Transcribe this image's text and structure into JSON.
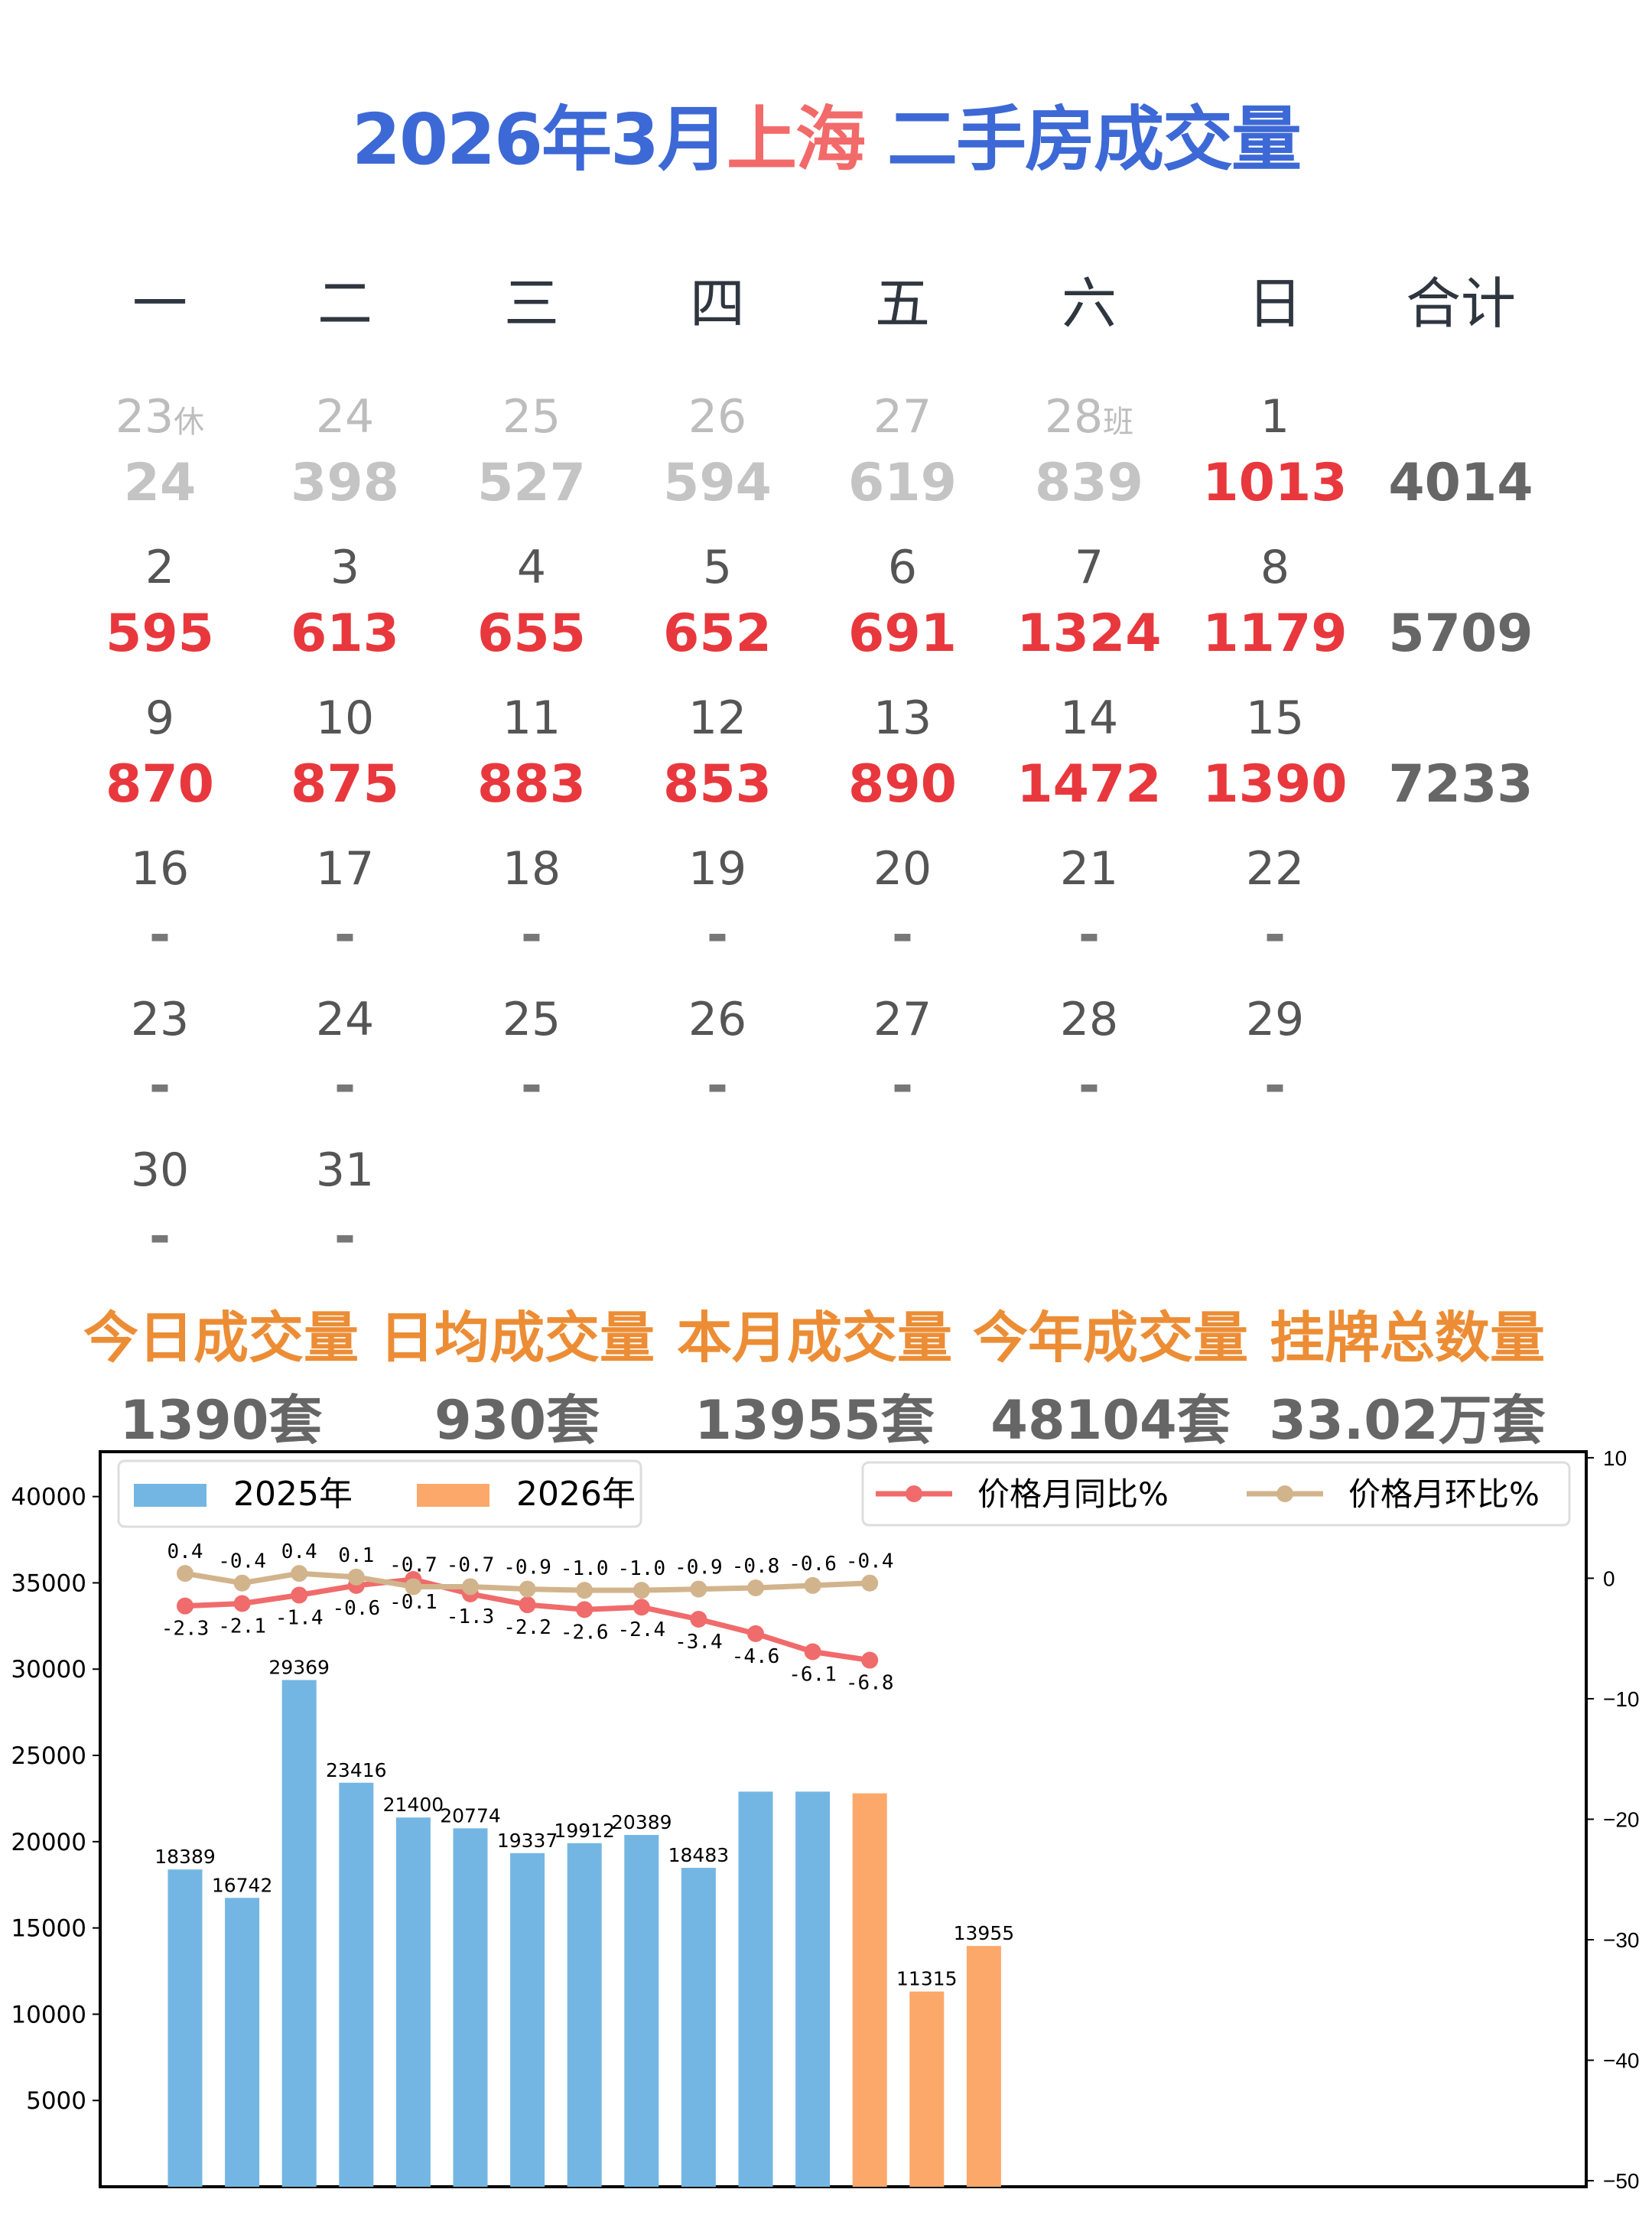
{
  "title": {
    "prefix": "2026年3月",
    "city": "上海",
    "suffix": " 二手房成交量",
    "color": "#3d69d6",
    "city_color": "#f26a6a"
  },
  "calendar": {
    "weekdays": [
      "一",
      "二",
      "三",
      "四",
      "五",
      "六",
      "日",
      "合计"
    ],
    "weeks": [
      {
        "days": [
          {
            "date": "23",
            "note": "休",
            "value": "24",
            "state": "prev"
          },
          {
            "date": "24",
            "value": "398",
            "state": "prev"
          },
          {
            "date": "25",
            "value": "527",
            "state": "prev"
          },
          {
            "date": "26",
            "value": "594",
            "state": "prev"
          },
          {
            "date": "27",
            "value": "619",
            "state": "prev"
          },
          {
            "date": "28",
            "note": "班",
            "value": "839",
            "state": "prev"
          },
          {
            "date": "1",
            "value": "1013",
            "state": "current"
          }
        ],
        "total": "4014"
      },
      {
        "days": [
          {
            "date": "2",
            "value": "595",
            "state": "current"
          },
          {
            "date": "3",
            "value": "613",
            "state": "current"
          },
          {
            "date": "4",
            "value": "655",
            "state": "current"
          },
          {
            "date": "5",
            "value": "652",
            "state": "current"
          },
          {
            "date": "6",
            "value": "691",
            "state": "current"
          },
          {
            "date": "7",
            "value": "1324",
            "state": "current"
          },
          {
            "date": "8",
            "value": "1179",
            "state": "current"
          }
        ],
        "total": "5709"
      },
      {
        "days": [
          {
            "date": "9",
            "value": "870",
            "state": "current"
          },
          {
            "date": "10",
            "value": "875",
            "state": "current"
          },
          {
            "date": "11",
            "value": "883",
            "state": "current"
          },
          {
            "date": "12",
            "value": "853",
            "state": "current"
          },
          {
            "date": "13",
            "value": "890",
            "state": "current"
          },
          {
            "date": "14",
            "value": "1472",
            "state": "current"
          },
          {
            "date": "15",
            "value": "1390",
            "state": "current"
          }
        ],
        "total": "7233"
      },
      {
        "days": [
          {
            "date": "16",
            "value": "-",
            "state": "future"
          },
          {
            "date": "17",
            "value": "-",
            "state": "future"
          },
          {
            "date": "18",
            "value": "-",
            "state": "future"
          },
          {
            "date": "19",
            "value": "-",
            "state": "future"
          },
          {
            "date": "20",
            "value": "-",
            "state": "future"
          },
          {
            "date": "21",
            "value": "-",
            "state": "future"
          },
          {
            "date": "22",
            "value": "-",
            "state": "future"
          }
        ],
        "total": ""
      },
      {
        "days": [
          {
            "date": "23",
            "value": "-",
            "state": "future"
          },
          {
            "date": "24",
            "value": "-",
            "state": "future"
          },
          {
            "date": "25",
            "value": "-",
            "state": "future"
          },
          {
            "date": "26",
            "value": "-",
            "state": "future"
          },
          {
            "date": "27",
            "value": "-",
            "state": "future"
          },
          {
            "date": "28",
            "value": "-",
            "state": "future"
          },
          {
            "date": "29",
            "value": "-",
            "state": "future"
          }
        ],
        "total": ""
      },
      {
        "days": [
          {
            "date": "30",
            "value": "-",
            "state": "future"
          },
          {
            "date": "31",
            "value": "-",
            "state": "future"
          }
        ],
        "total": ""
      }
    ]
  },
  "stats": [
    {
      "label": "今日成交量",
      "value": "1390套"
    },
    {
      "label": "日均成交量",
      "value": "930套"
    },
    {
      "label": "本月成交量",
      "value": "13955套"
    },
    {
      "label": "今年成交量",
      "value": "48104套"
    },
    {
      "label": "挂牌总数量",
      "value": "33.02万套"
    }
  ],
  "chart_data": {
    "type": "bar+line",
    "left_axis": {
      "ylim": [
        0,
        42600
      ],
      "ticks": [
        5000,
        10000,
        15000,
        20000,
        25000,
        30000,
        35000,
        40000
      ]
    },
    "right_axis": {
      "ylim": [
        -50.5,
        10.5
      ],
      "ticks": [
        10,
        0,
        -10,
        -20,
        -30,
        -40,
        -50
      ]
    },
    "bar_series": [
      {
        "name": "2025年",
        "color": "#74b6e3",
        "values": [
          18389,
          16742,
          29369,
          23416,
          21400,
          20774,
          19337,
          19912,
          20389,
          18483,
          22900,
          22900
        ],
        "labels": [
          "18389",
          "16742",
          "29369",
          "23416",
          "21400",
          "20774",
          "19337",
          "19912",
          "20389",
          "18483",
          "",
          ""
        ]
      },
      {
        "name": "2026年",
        "color": "#fba86a",
        "values": [
          22800,
          11315,
          13955
        ],
        "labels": [
          "",
          "11315",
          "13955"
        ]
      }
    ],
    "line_series": [
      {
        "name": "价格月同比%",
        "color": "#f06b6b",
        "values": [
          -2.3,
          -2.1,
          -1.4,
          -0.6,
          -0.1,
          -1.3,
          -2.2,
          -2.6,
          -2.4,
          -3.4,
          -4.6,
          -6.1,
          -6.8
        ],
        "label_position": "below"
      },
      {
        "name": "价格月环比%",
        "color": "#d2b48c",
        "values": [
          0.4,
          -0.4,
          0.4,
          0.1,
          -0.7,
          -0.7,
          -0.9,
          -1.0,
          -1.0,
          -0.9,
          -0.8,
          -0.6,
          -0.4
        ],
        "label_position": "above"
      }
    ],
    "legend": [
      "top-left (bars)",
      "top-right (lines)"
    ],
    "grid": false
  }
}
